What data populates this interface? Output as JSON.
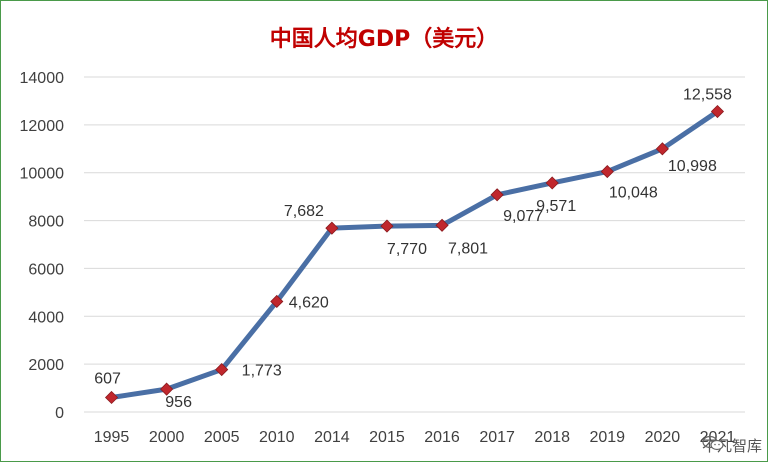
{
  "chart_data": {
    "type": "line",
    "title": "中国人均GDP（美元）",
    "xlabel": "",
    "ylabel": "",
    "categories": [
      "1995",
      "2000",
      "2005",
      "2010",
      "2014",
      "2015",
      "2016",
      "2017",
      "2018",
      "2019",
      "2020",
      "2021"
    ],
    "series": [
      {
        "values": [
          607,
          956,
          1773,
          4620,
          7682,
          7770,
          7801,
          9077,
          9571,
          10048,
          10998,
          12558
        ],
        "labels": [
          "607",
          "956",
          "1,773",
          "4,620",
          "7,682",
          "7,770",
          "7,801",
          "9,077",
          "9,571",
          "10,048",
          "10,998",
          "12,558"
        ]
      }
    ],
    "ylim": [
      0,
      14000
    ],
    "yticks": [
      0,
      2000,
      4000,
      6000,
      8000,
      10000,
      12000,
      14000
    ],
    "grid": true,
    "colors": {
      "line": "#4a6fa5",
      "marker": "#c0272d",
      "grid": "#d9d9d9",
      "title": "#c00000"
    }
  },
  "watermark": {
    "text": "不凡智库",
    "icon": "wechat-icon"
  }
}
